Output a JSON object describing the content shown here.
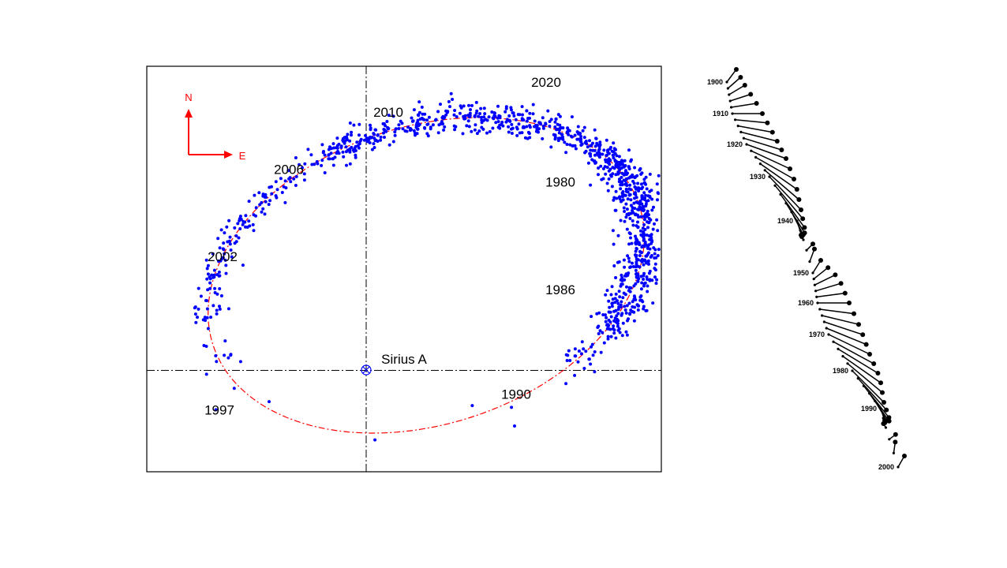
{
  "chart_data": [
    {
      "type": "scatter",
      "title": "",
      "description_units": "arcsec offsets relative to Sirius A (approx.)",
      "xlim": [
        -6.95,
        9.35
      ],
      "ylim": [
        -3.2,
        9.6
      ],
      "grid": false,
      "origin_label": "Sirius A",
      "compass": {
        "north": "N",
        "east": "E"
      },
      "point_color": "#0000ff",
      "orbit_color": "#ff0000",
      "orbit_ellipse": {
        "center": [
          1.9,
          3.0
        ],
        "semi_major": 7.1,
        "semi_minor": 4.7,
        "rotation_deg": 18
      },
      "point_clusters": [
        {
          "t_from": -45,
          "t_to": 20,
          "count": 520,
          "spread": 0.32
        },
        {
          "t_from": 20,
          "t_to": 105,
          "count": 480,
          "spread": 0.22
        },
        {
          "t_from": 105,
          "t_to": 170,
          "count": 150,
          "spread": 0.22
        },
        {
          "t_from": 170,
          "t_to": 200,
          "count": 14,
          "spread": 0.35
        },
        {
          "t_from": 200,
          "t_to": 300,
          "count": 8,
          "spread": 0.4
        },
        {
          "t_from": 300,
          "t_to": 315,
          "count": 40,
          "spread": 0.25
        }
      ],
      "epoch_labels": [
        {
          "text": "2020",
          "x": 5.7,
          "y": 9.1
        },
        {
          "text": "2010",
          "x": 0.7,
          "y": 8.15
        },
        {
          "text": "2006",
          "x": -2.45,
          "y": 6.35
        },
        {
          "text": "2002",
          "x": -4.55,
          "y": 3.6
        },
        {
          "text": "1997",
          "x": -4.65,
          "y": -1.25
        },
        {
          "text": "1990",
          "x": 4.75,
          "y": -0.75
        },
        {
          "text": "1986",
          "x": 6.15,
          "y": 2.55
        },
        {
          "text": "1980",
          "x": 6.15,
          "y": 5.95
        }
      ]
    },
    {
      "type": "stick",
      "title": "",
      "year_range": [
        1900,
        2000
      ],
      "step_years": 2,
      "year_labels": [
        "1900",
        "1910",
        "1920",
        "1930",
        "1940",
        "1950",
        "1960",
        "1970",
        "1980",
        "1990",
        "2000"
      ],
      "color": "#000000"
    }
  ]
}
